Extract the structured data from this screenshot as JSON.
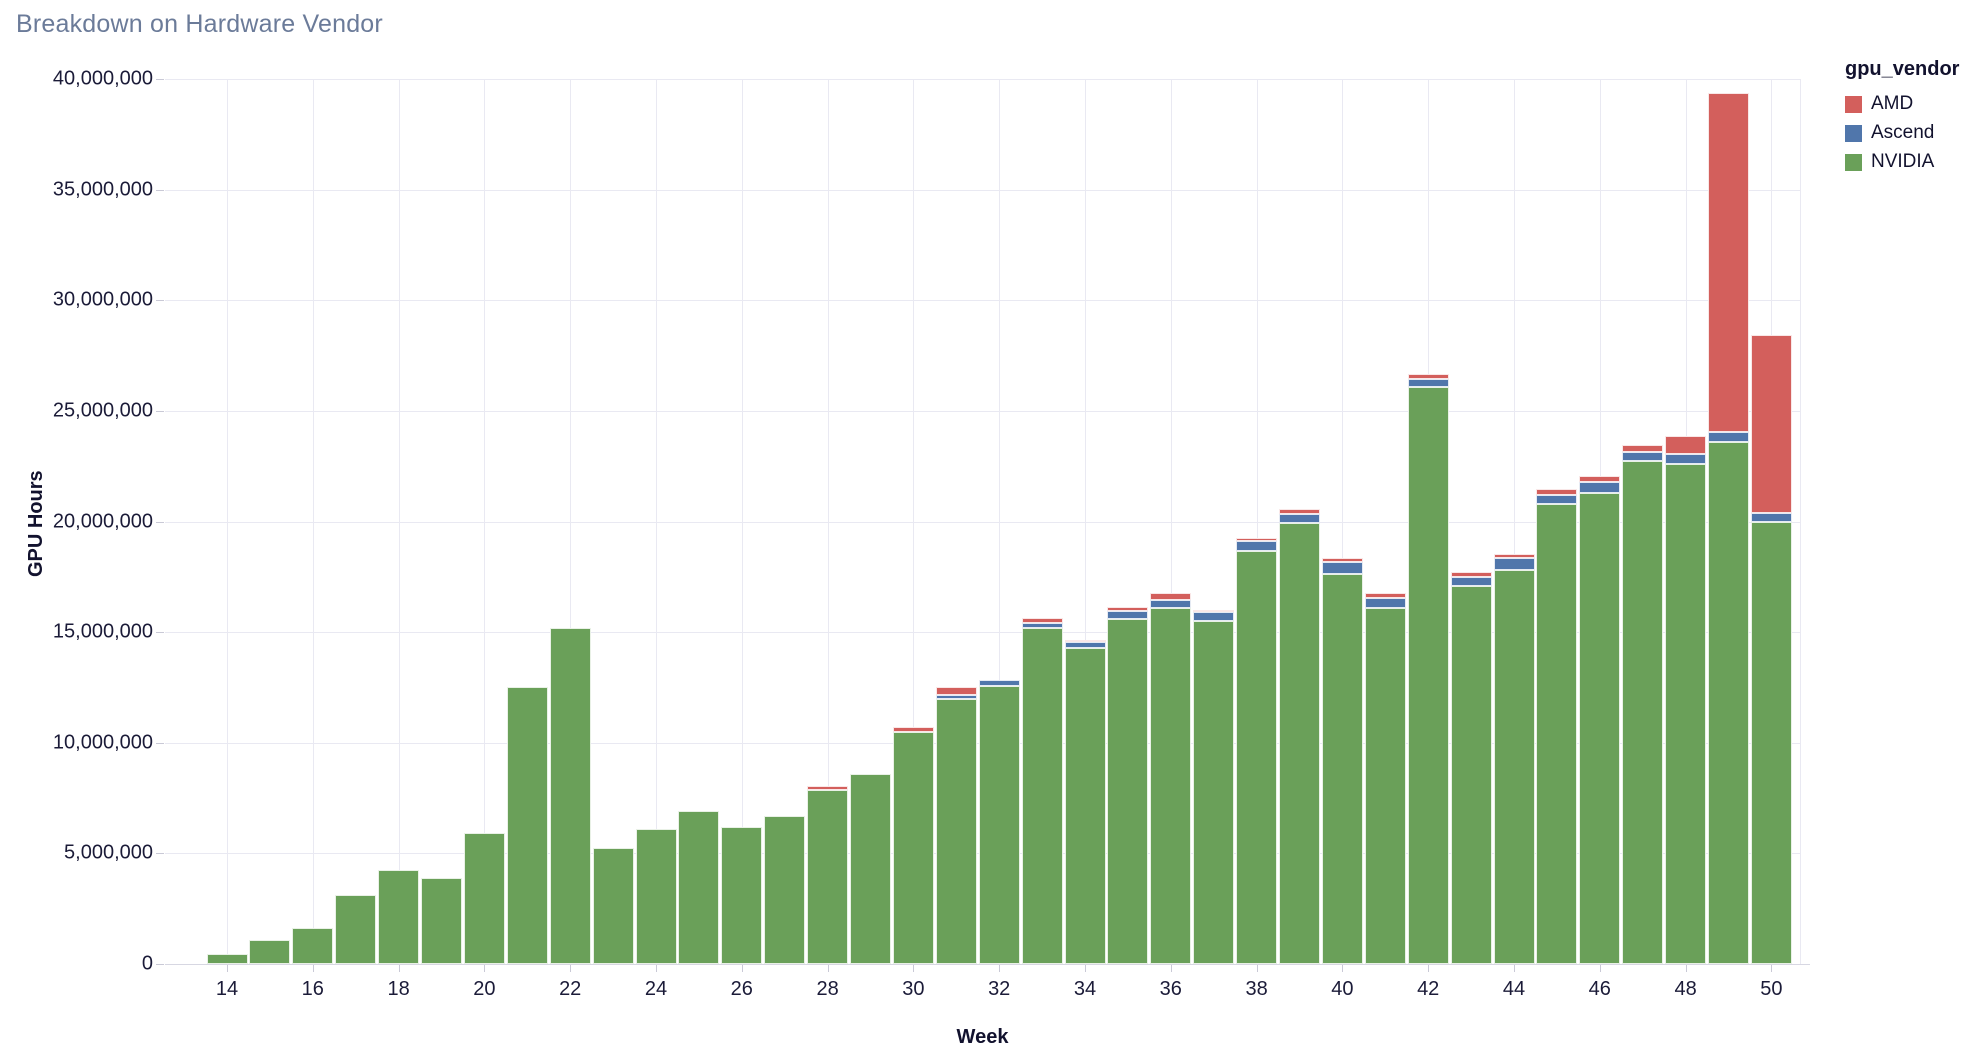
{
  "title": "Breakdown on Hardware Vendor",
  "legend": {
    "title": "gpu_vendor",
    "entries": [
      {
        "label": "AMD",
        "color": "#d35f5c"
      },
      {
        "label": "Ascend",
        "color": "#5076ab"
      },
      {
        "label": "NVIDIA",
        "color": "#6aa059"
      }
    ]
  },
  "chart_data": {
    "type": "bar",
    "stacked": true,
    "title": "Breakdown on Hardware Vendor",
    "xlabel": "Week",
    "ylabel": "GPU Hours",
    "x": [
      14,
      15,
      16,
      17,
      18,
      19,
      20,
      21,
      22,
      23,
      24,
      25,
      26,
      27,
      28,
      29,
      30,
      31,
      32,
      33,
      34,
      35,
      36,
      37,
      38,
      39,
      40,
      41,
      42,
      43,
      44,
      45,
      46,
      47,
      48,
      49,
      50
    ],
    "xtick_weeks": [
      14,
      16,
      18,
      20,
      22,
      24,
      26,
      28,
      30,
      32,
      34,
      36,
      38,
      40,
      42,
      44,
      46,
      48,
      50
    ],
    "ylim": [
      0,
      40000000
    ],
    "ytick_interval": 5000000,
    "grid": true,
    "legend_position": "top-right",
    "series": [
      {
        "name": "NVIDIA",
        "color": "#6aa059",
        "values": [
          450000,
          1100000,
          1650000,
          3100000,
          4250000,
          3900000,
          5900000,
          12500000,
          15200000,
          5250000,
          6100000,
          6900000,
          6200000,
          6700000,
          7850000,
          8600000,
          10500000,
          12000000,
          12550000,
          15200000,
          14300000,
          15600000,
          16100000,
          15500000,
          18650000,
          19950000,
          17650000,
          16100000,
          26100000,
          17100000,
          17800000,
          20800000,
          21300000,
          22750000,
          22600000,
          23600000,
          20000000
        ]
      },
      {
        "name": "Ascend",
        "color": "#5076ab",
        "values": [
          0,
          0,
          0,
          0,
          0,
          0,
          0,
          0,
          0,
          0,
          0,
          0,
          0,
          0,
          0,
          0,
          0,
          150000,
          300000,
          200000,
          250000,
          350000,
          350000,
          400000,
          450000,
          400000,
          500000,
          450000,
          350000,
          400000,
          550000,
          400000,
          500000,
          400000,
          450000,
          450000,
          400000
        ]
      },
      {
        "name": "AMD",
        "color": "#d35f5c",
        "values": [
          0,
          0,
          0,
          0,
          0,
          0,
          0,
          0,
          0,
          0,
          0,
          0,
          0,
          0,
          200000,
          0,
          200000,
          350000,
          0,
          250000,
          100000,
          200000,
          300000,
          100000,
          150000,
          200000,
          200000,
          200000,
          200000,
          200000,
          200000,
          250000,
          250000,
          300000,
          800000,
          15300000,
          8050000
        ]
      }
    ]
  }
}
